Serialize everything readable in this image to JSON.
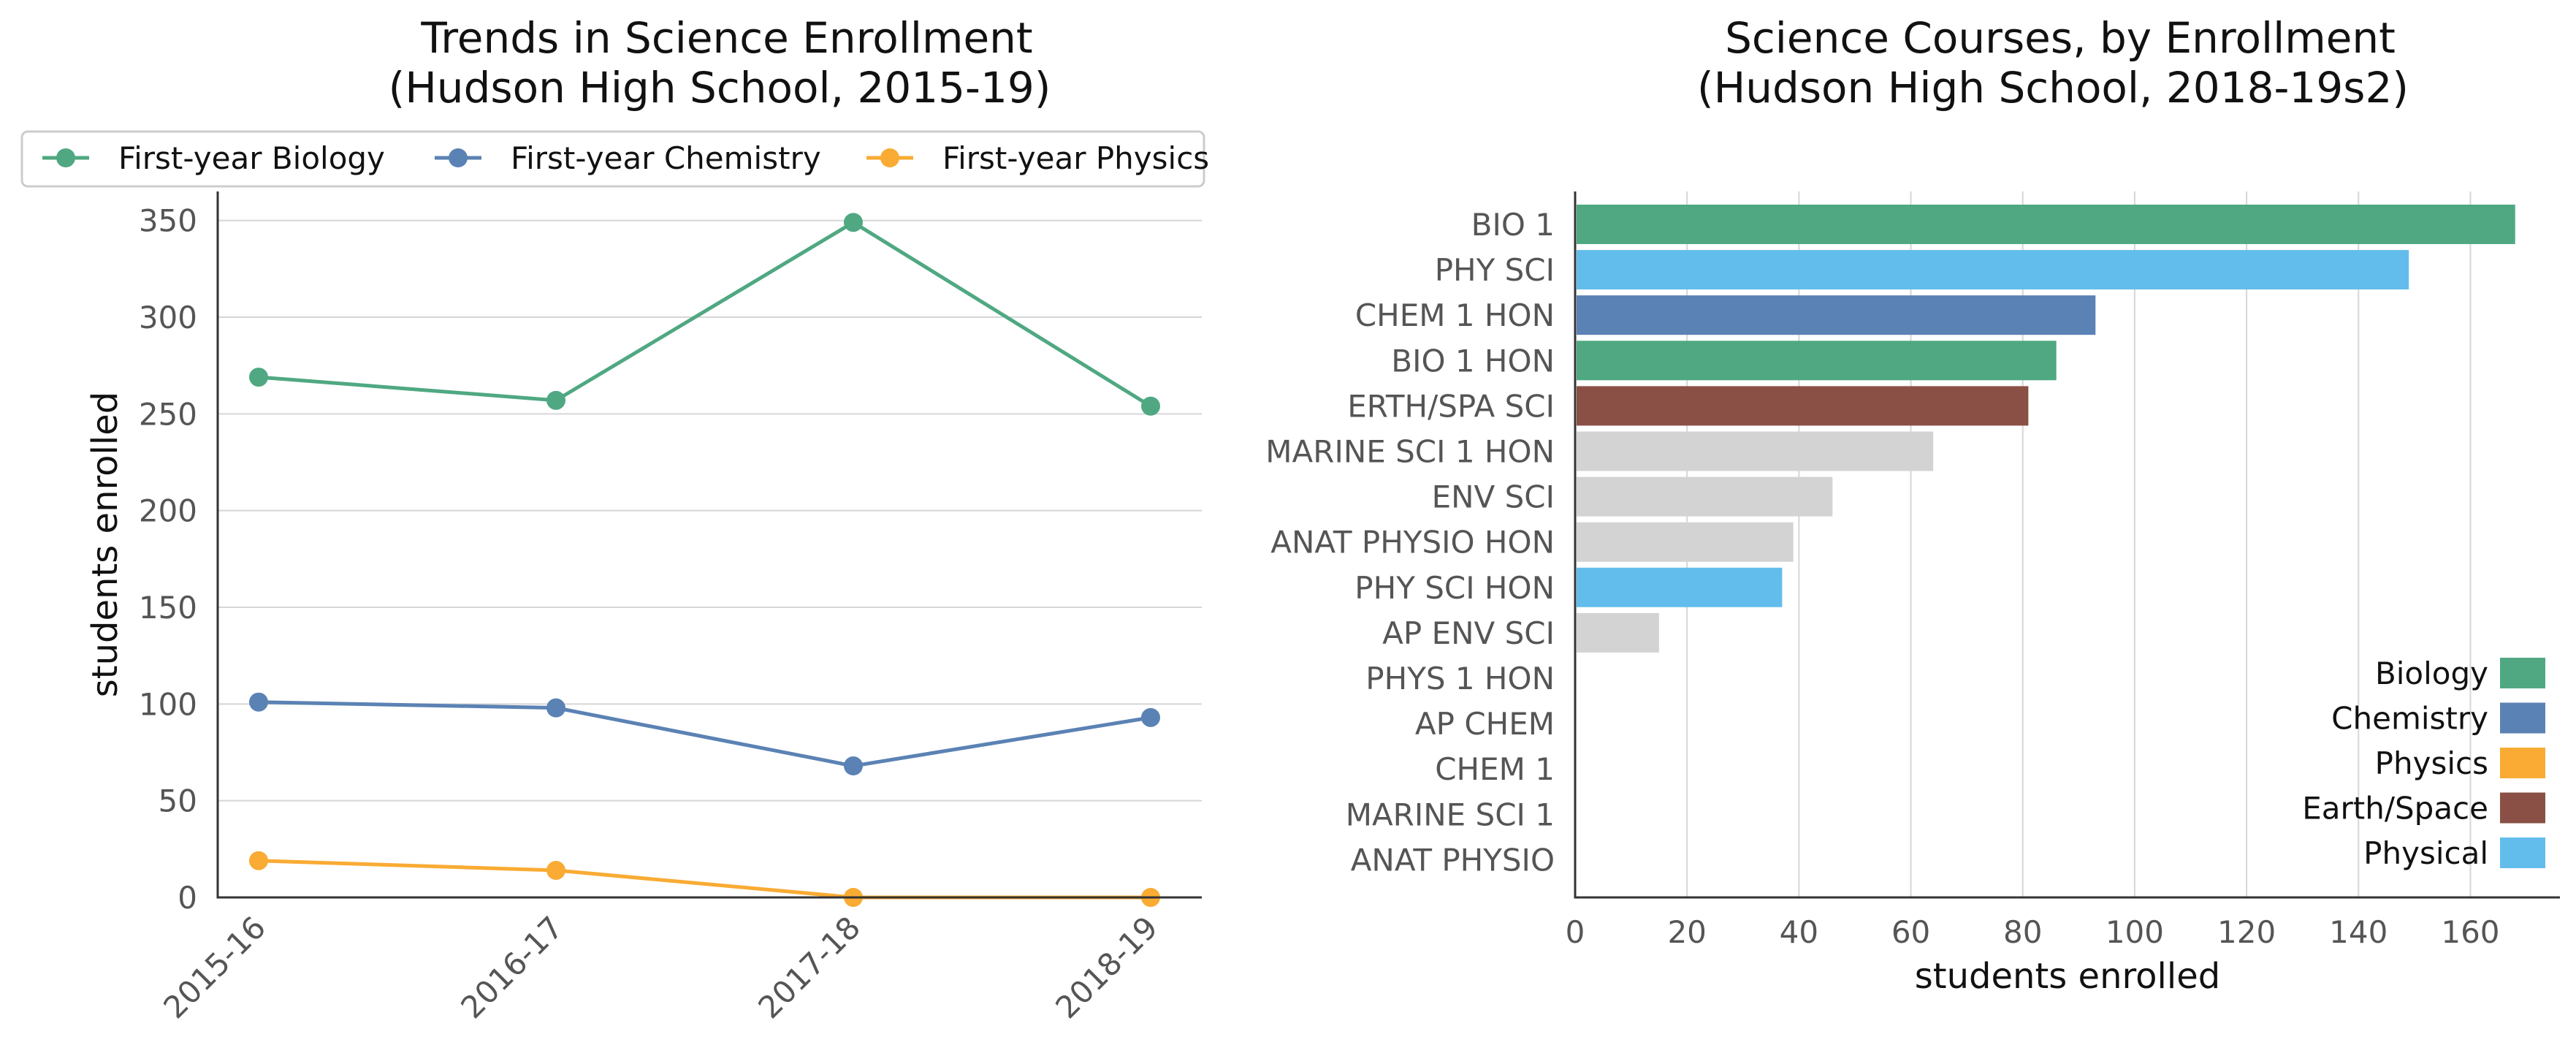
{
  "chart_data": [
    {
      "type": "line",
      "title": [
        "Trends in Science Enrollment",
        "(Hudson High School, 2015-19)"
      ],
      "ylabel": "students enrolled",
      "xlabel": "",
      "x": [
        "2015-16",
        "2016-17",
        "2017-18",
        "2018-19"
      ],
      "ylim": [
        0,
        365
      ],
      "yticks": [
        0,
        50,
        100,
        150,
        200,
        250,
        300,
        350
      ],
      "grid": "horizontal",
      "legend_position": "top",
      "series": [
        {
          "name": "First-year Biology",
          "color": "#4fa882",
          "values": [
            269,
            257,
            349,
            254
          ]
        },
        {
          "name": "First-year Chemistry",
          "color": "#5b82b4",
          "values": [
            101,
            98,
            68,
            93
          ]
        },
        {
          "name": "First-year Physics",
          "color": "#f9ab33",
          "values": [
            19,
            14,
            0,
            0
          ]
        }
      ]
    },
    {
      "type": "bar",
      "orientation": "horizontal",
      "title": [
        "Science Courses, by Enrollment",
        "(Hudson High School, 2018-19s2)"
      ],
      "xlabel": "students enrolled",
      "xlim": [
        0,
        176
      ],
      "xticks": [
        0,
        20,
        40,
        60,
        80,
        100,
        120,
        140,
        160
      ],
      "grid": "vertical",
      "legend_position": "lower right",
      "categories": [
        "BIO 1",
        "PHY SCI",
        "CHEM 1 HON",
        "BIO 1 HON",
        "ERTH/SPA SCI",
        "MARINE SCI 1 HON",
        "ENV SCI",
        "ANAT PHYSIO HON",
        "PHY SCI HON",
        "AP ENV SCI",
        "PHYS 1 HON",
        "AP CHEM",
        "CHEM 1",
        "MARINE SCI 1",
        "ANAT PHYSIO"
      ],
      "values": [
        168,
        149,
        93,
        86,
        81,
        64,
        46,
        39,
        37,
        15,
        0,
        0,
        0,
        0,
        0
      ],
      "bar_colors": [
        "#4fa882",
        "#63bdec",
        "#5b82b4",
        "#4fa882",
        "#8a5045",
        "#d3d3d3",
        "#d3d3d3",
        "#d3d3d3",
        "#63bdec",
        "#d3d3d3",
        "#d3d3d3",
        "#d3d3d3",
        "#d3d3d3",
        "#d3d3d3",
        "#d3d3d3"
      ],
      "legend": [
        {
          "name": "Biology",
          "color": "#4fa882"
        },
        {
          "name": "Chemistry",
          "color": "#5b82b4"
        },
        {
          "name": "Physics",
          "color": "#f9ab33"
        },
        {
          "name": "Earth/Space",
          "color": "#8a5045"
        },
        {
          "name": "Physical",
          "color": "#63bdec"
        }
      ]
    }
  ]
}
